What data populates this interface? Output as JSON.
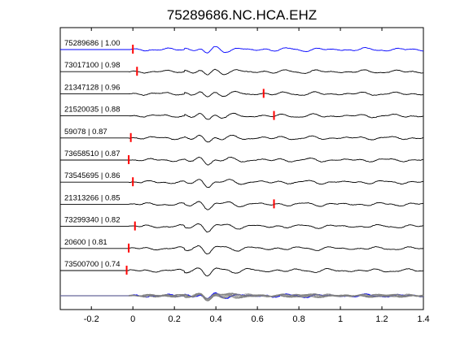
{
  "chart_data": {
    "type": "line",
    "title": "75289686.NC.HCA.EHZ",
    "xlabel": "",
    "ylabel": "",
    "xlim": [
      -0.35,
      1.4
    ],
    "xticks": [
      -0.2,
      0,
      0.2,
      0.4,
      0.6,
      0.8,
      1,
      1.2,
      1.4
    ],
    "xtick_labels": [
      "-0.2",
      "0",
      "0.2",
      "0.4",
      "0.6",
      "0.8",
      "1",
      "1.2",
      "1.4"
    ],
    "grid": false,
    "traces": [
      {
        "label": "75289686 | 1.00",
        "pick": 0.0,
        "color": "#0000ff"
      },
      {
        "label": "73017100 | 0.98",
        "pick": 0.02,
        "color": "#000000"
      },
      {
        "label": "21347128 | 0.96",
        "pick": 0.63,
        "color": "#000000"
      },
      {
        "label": "21520035 | 0.88",
        "pick": 0.68,
        "color": "#000000"
      },
      {
        "label": "59078 | 0.87",
        "pick": -0.01,
        "color": "#000000"
      },
      {
        "label": "73658510 | 0.87",
        "pick": -0.02,
        "color": "#000000"
      },
      {
        "label": "73545695 | 0.86",
        "pick": 0.0,
        "color": "#000000"
      },
      {
        "label": "21313266 | 0.85",
        "pick": 0.68,
        "color": "#000000"
      },
      {
        "label": "73299340 | 0.82",
        "pick": 0.01,
        "color": "#000000"
      },
      {
        "label": "20600 | 0.81",
        "pick": -0.02,
        "color": "#000000"
      },
      {
        "label": "73500700 | 0.74",
        "pick": -0.03,
        "color": "#000000"
      }
    ],
    "stack": {
      "color": "#808080",
      "reference_color": "#0000ff"
    },
    "pick_color": "#ff0000"
  }
}
